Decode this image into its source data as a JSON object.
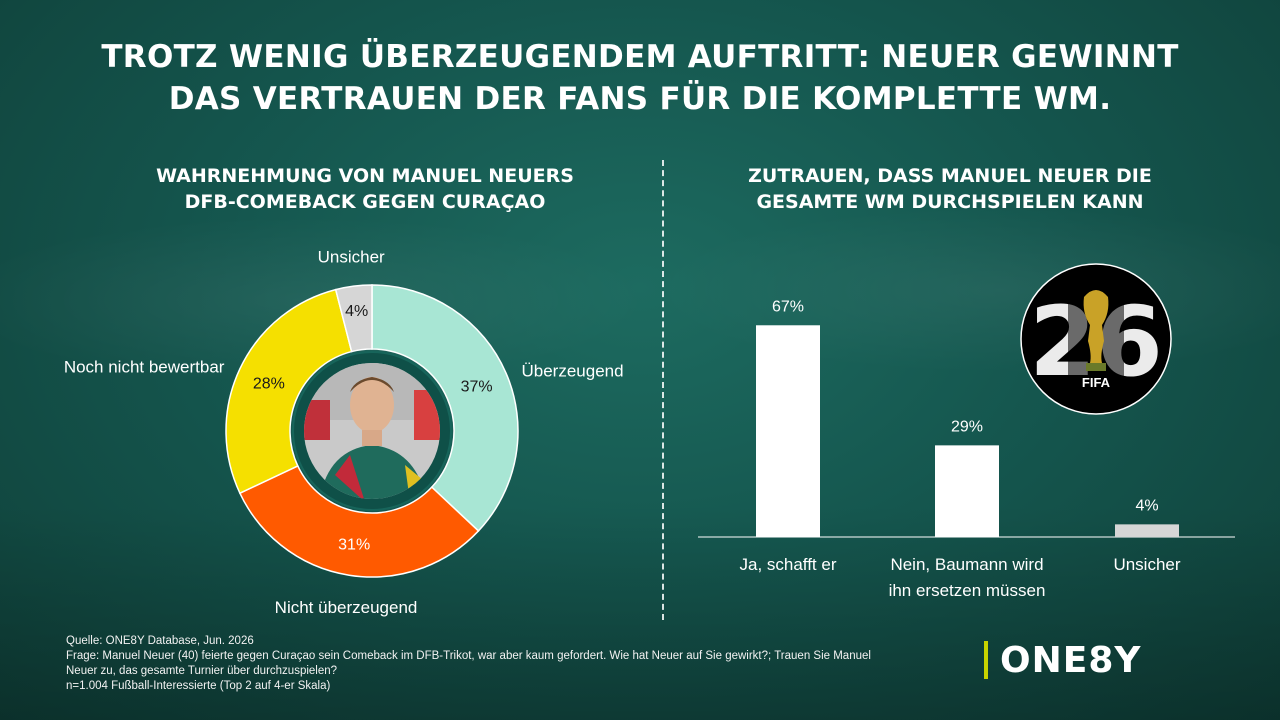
{
  "title": {
    "line1": "TROTZ WENIG ÜBERZEUGENDEM AUFTRITT: NEUER GEWINNT",
    "line2": "DAS VERTRAUEN DER FANS FÜR DIE KOMPLETTE WM."
  },
  "chart_data": [
    {
      "type": "pie",
      "title": "WAHRNEHMUNG VON MANUEL NEUERS DFB-COMEBACK GEGEN CURAÇAO",
      "title_lines": [
        "WAHRNEHMUNG VON MANUEL NEUERS",
        "DFB-COMEBACK GEGEN CURAÇAO"
      ],
      "style": "donut",
      "categories": [
        "Überzeugend",
        "Nicht überzeugend",
        "Noch nicht bewertbar",
        "Unsicher"
      ],
      "values": [
        37,
        31,
        28,
        4
      ],
      "value_labels": [
        "37%",
        "31%",
        "28%",
        "4%"
      ],
      "colors": [
        "#a8e6d4",
        "#ff5a00",
        "#f5e000",
        "#d6d6d6"
      ],
      "label_colors": [
        "#1a1a1a",
        "#ffffff",
        "#1a1a1a",
        "#1a1a1a"
      ],
      "legend": "labels around donut",
      "center_image": "player-photo"
    },
    {
      "type": "bar",
      "title": "ZUTRAUEN, DASS MANUEL NEUER DIE GESAMTE WM DURCHSPIELEN KANN",
      "title_lines": [
        "ZUTRAUEN, DASS MANUEL NEUER DIE",
        "GESAMTE WM DURCHSPIELEN KANN"
      ],
      "categories": [
        "Ja, schafft er",
        "Nein, Baumann wird ihn ersetzen müssen",
        "Unsicher"
      ],
      "category_lines": [
        [
          "Ja, schafft er"
        ],
        [
          "Nein, Baumann wird",
          "ihn ersetzen müssen"
        ],
        [
          "Unsicher"
        ]
      ],
      "values": [
        67,
        29,
        4
      ],
      "value_labels": [
        "67%",
        "29%",
        "4%"
      ],
      "colors": [
        "#ffffff",
        "#ffffff",
        "#d6d6d6"
      ],
      "ylim": [
        0,
        100
      ],
      "grid": false
    }
  ],
  "fifa_logo": {
    "text": "FIFA",
    "year_digits": "26"
  },
  "footer": {
    "lines": [
      "Quelle: ONE8Y Database, Jun. 2026",
      "Frage: Manuel Neuer (40) feierte gegen Curaçao sein Comeback im DFB-Trikot, war aber kaum gefordert. Wie hat Neuer auf Sie gewirkt?; Trauen Sie Manuel",
      "Neuer zu, das gesamte Turnier über durchzuspielen?",
      "n=1.004 Fußball-Interessierte (Top 2 auf 4-er Skala)"
    ]
  },
  "brand": {
    "name": "ONE8Y",
    "accent": "#c8d400"
  }
}
